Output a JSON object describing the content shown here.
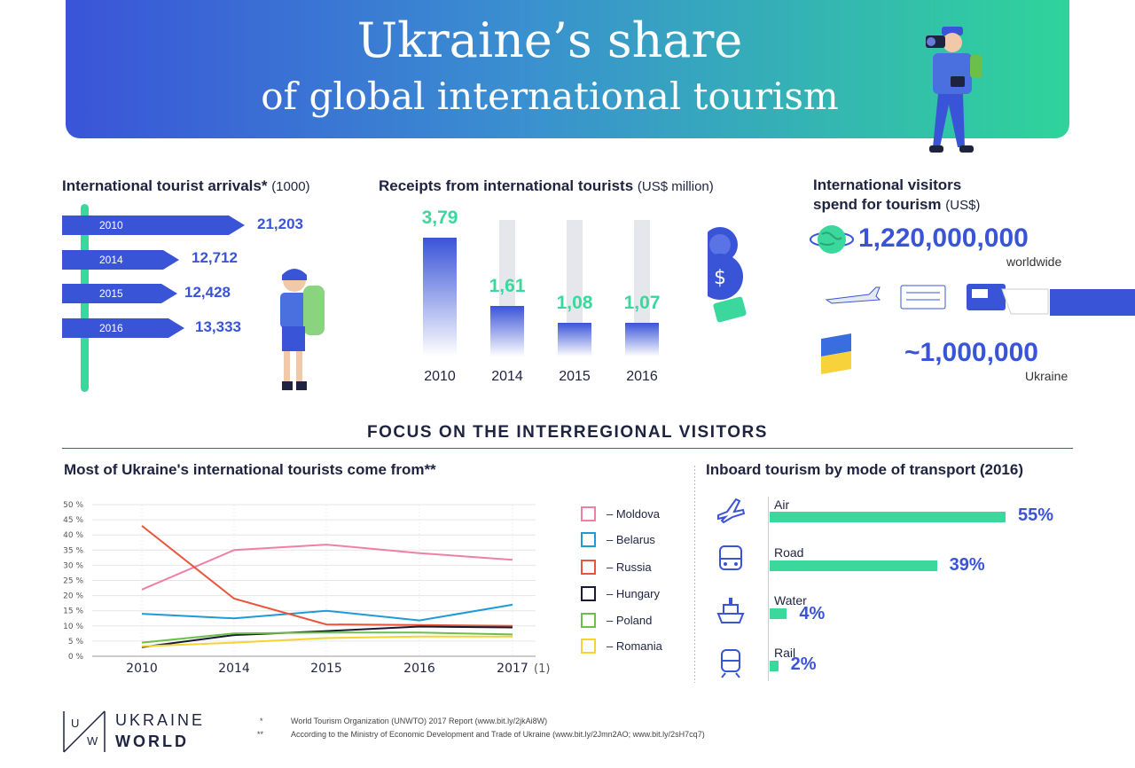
{
  "header": {
    "title_line1": "Ukraine’s share",
    "title_line2": "of global international tourism"
  },
  "arrivals": {
    "title": "International tourist arrivals*",
    "unit": "(1000)",
    "rows": [
      {
        "year": "2010",
        "value": "21,203"
      },
      {
        "year": "2014",
        "value": "12,712"
      },
      {
        "year": "2015",
        "value": "12,428"
      },
      {
        "year": "2016",
        "value": "13,333"
      }
    ]
  },
  "receipts": {
    "title": "Receipts from international tourists",
    "unit": "(US$ million)"
  },
  "spend": {
    "title_line1": "International visitors",
    "title_line2": "spend for tourism",
    "unit": "(US$)",
    "worldwide_value": "1,220,000,000",
    "worldwide_label": "worldwide",
    "ukraine_value": "~1,000,000",
    "ukraine_label": "Ukraine"
  },
  "focus_title": "FOCUS ON THE INTERREGIONAL VISITORS",
  "origins": {
    "title": "Most of Ukraine's international tourists come from**",
    "legend": [
      "– Moldova",
      "– Belarus",
      "– Russia",
      "– Hungary",
      "– Poland",
      "– Romania"
    ]
  },
  "transport": {
    "title": "Inboard tourism by mode of transport (2016)",
    "modes": [
      {
        "label": "Air",
        "value": "55%",
        "pct": 55,
        "icon": "plane-icon"
      },
      {
        "label": "Road",
        "value": "39%",
        "pct": 39,
        "icon": "bus-icon"
      },
      {
        "label": "Water",
        "value": "4%",
        "pct": 4,
        "icon": "ship-icon"
      },
      {
        "label": "Rail",
        "value": "2%",
        "pct": 2,
        "icon": "train-icon"
      }
    ]
  },
  "footer": {
    "logo_line1": "UKRAINE",
    "logo_line2": "WORLD",
    "logo_u": "U",
    "logo_w": "W",
    "note1_mark": "*",
    "note1": "World Tourism Organization (UNWTO) 2017 Report (www.bit.ly/2jkAi8W)",
    "note2_mark": "**",
    "note2": "According to the Ministry of Economic Development and Trade of Ukraine (www.bit.ly/2Jmn2AO; www.bit.ly/2sH7cq7)"
  },
  "colors": {
    "primary_blue": "#3a54d8",
    "accent_green": "#3ad89c"
  },
  "chart_data": [
    {
      "type": "bar",
      "title": "Receipts from international tourists",
      "ylabel": "US$ million",
      "categories": [
        "2010",
        "2014",
        "2015",
        "2016"
      ],
      "values": [
        3.79,
        1.61,
        1.08,
        1.07
      ],
      "value_labels": [
        "3,79",
        "1,61",
        "1,08",
        "1,07"
      ],
      "ylim": [
        0,
        4.5
      ]
    },
    {
      "type": "line",
      "title": "Most of Ukraine's international tourists come from**",
      "x": [
        "2010",
        "2014",
        "2015",
        "2016",
        "2017"
      ],
      "x_note": "(1)",
      "ylim": [
        0,
        50
      ],
      "yticks": [
        "0 %",
        "5 %",
        "10 %",
        "15 %",
        "20 %",
        "25 %",
        "30 %",
        "35 %",
        "40 %",
        "45 %",
        "50 %"
      ],
      "grid": true,
      "legend_position": "right",
      "series": [
        {
          "name": "Moldova",
          "color": "#f07fa8",
          "values": [
            22,
            35,
            36.8,
            34,
            31.8
          ]
        },
        {
          "name": "Belarus",
          "color": "#1e9ad6",
          "values": [
            14,
            12.5,
            15,
            11.8,
            17
          ]
        },
        {
          "name": "Russia",
          "color": "#e8553a",
          "values": [
            43,
            19,
            10.5,
            10.3,
            10
          ]
        },
        {
          "name": "Hungary",
          "color": "#1a1a33",
          "values": [
            3,
            7,
            8.3,
            9.8,
            9.5
          ]
        },
        {
          "name": "Poland",
          "color": "#6cc04a",
          "values": [
            4.5,
            7.5,
            7.8,
            7.8,
            7.2
          ]
        },
        {
          "name": "Romania",
          "color": "#f5d331",
          "values": [
            3.3,
            4.5,
            6,
            6.5,
            6.5
          ]
        }
      ]
    },
    {
      "type": "bar",
      "title": "Inboard tourism by mode of transport (2016)",
      "categories": [
        "Air",
        "Road",
        "Water",
        "Rail"
      ],
      "values": [
        55,
        39,
        4,
        2
      ],
      "unit": "%"
    }
  ]
}
